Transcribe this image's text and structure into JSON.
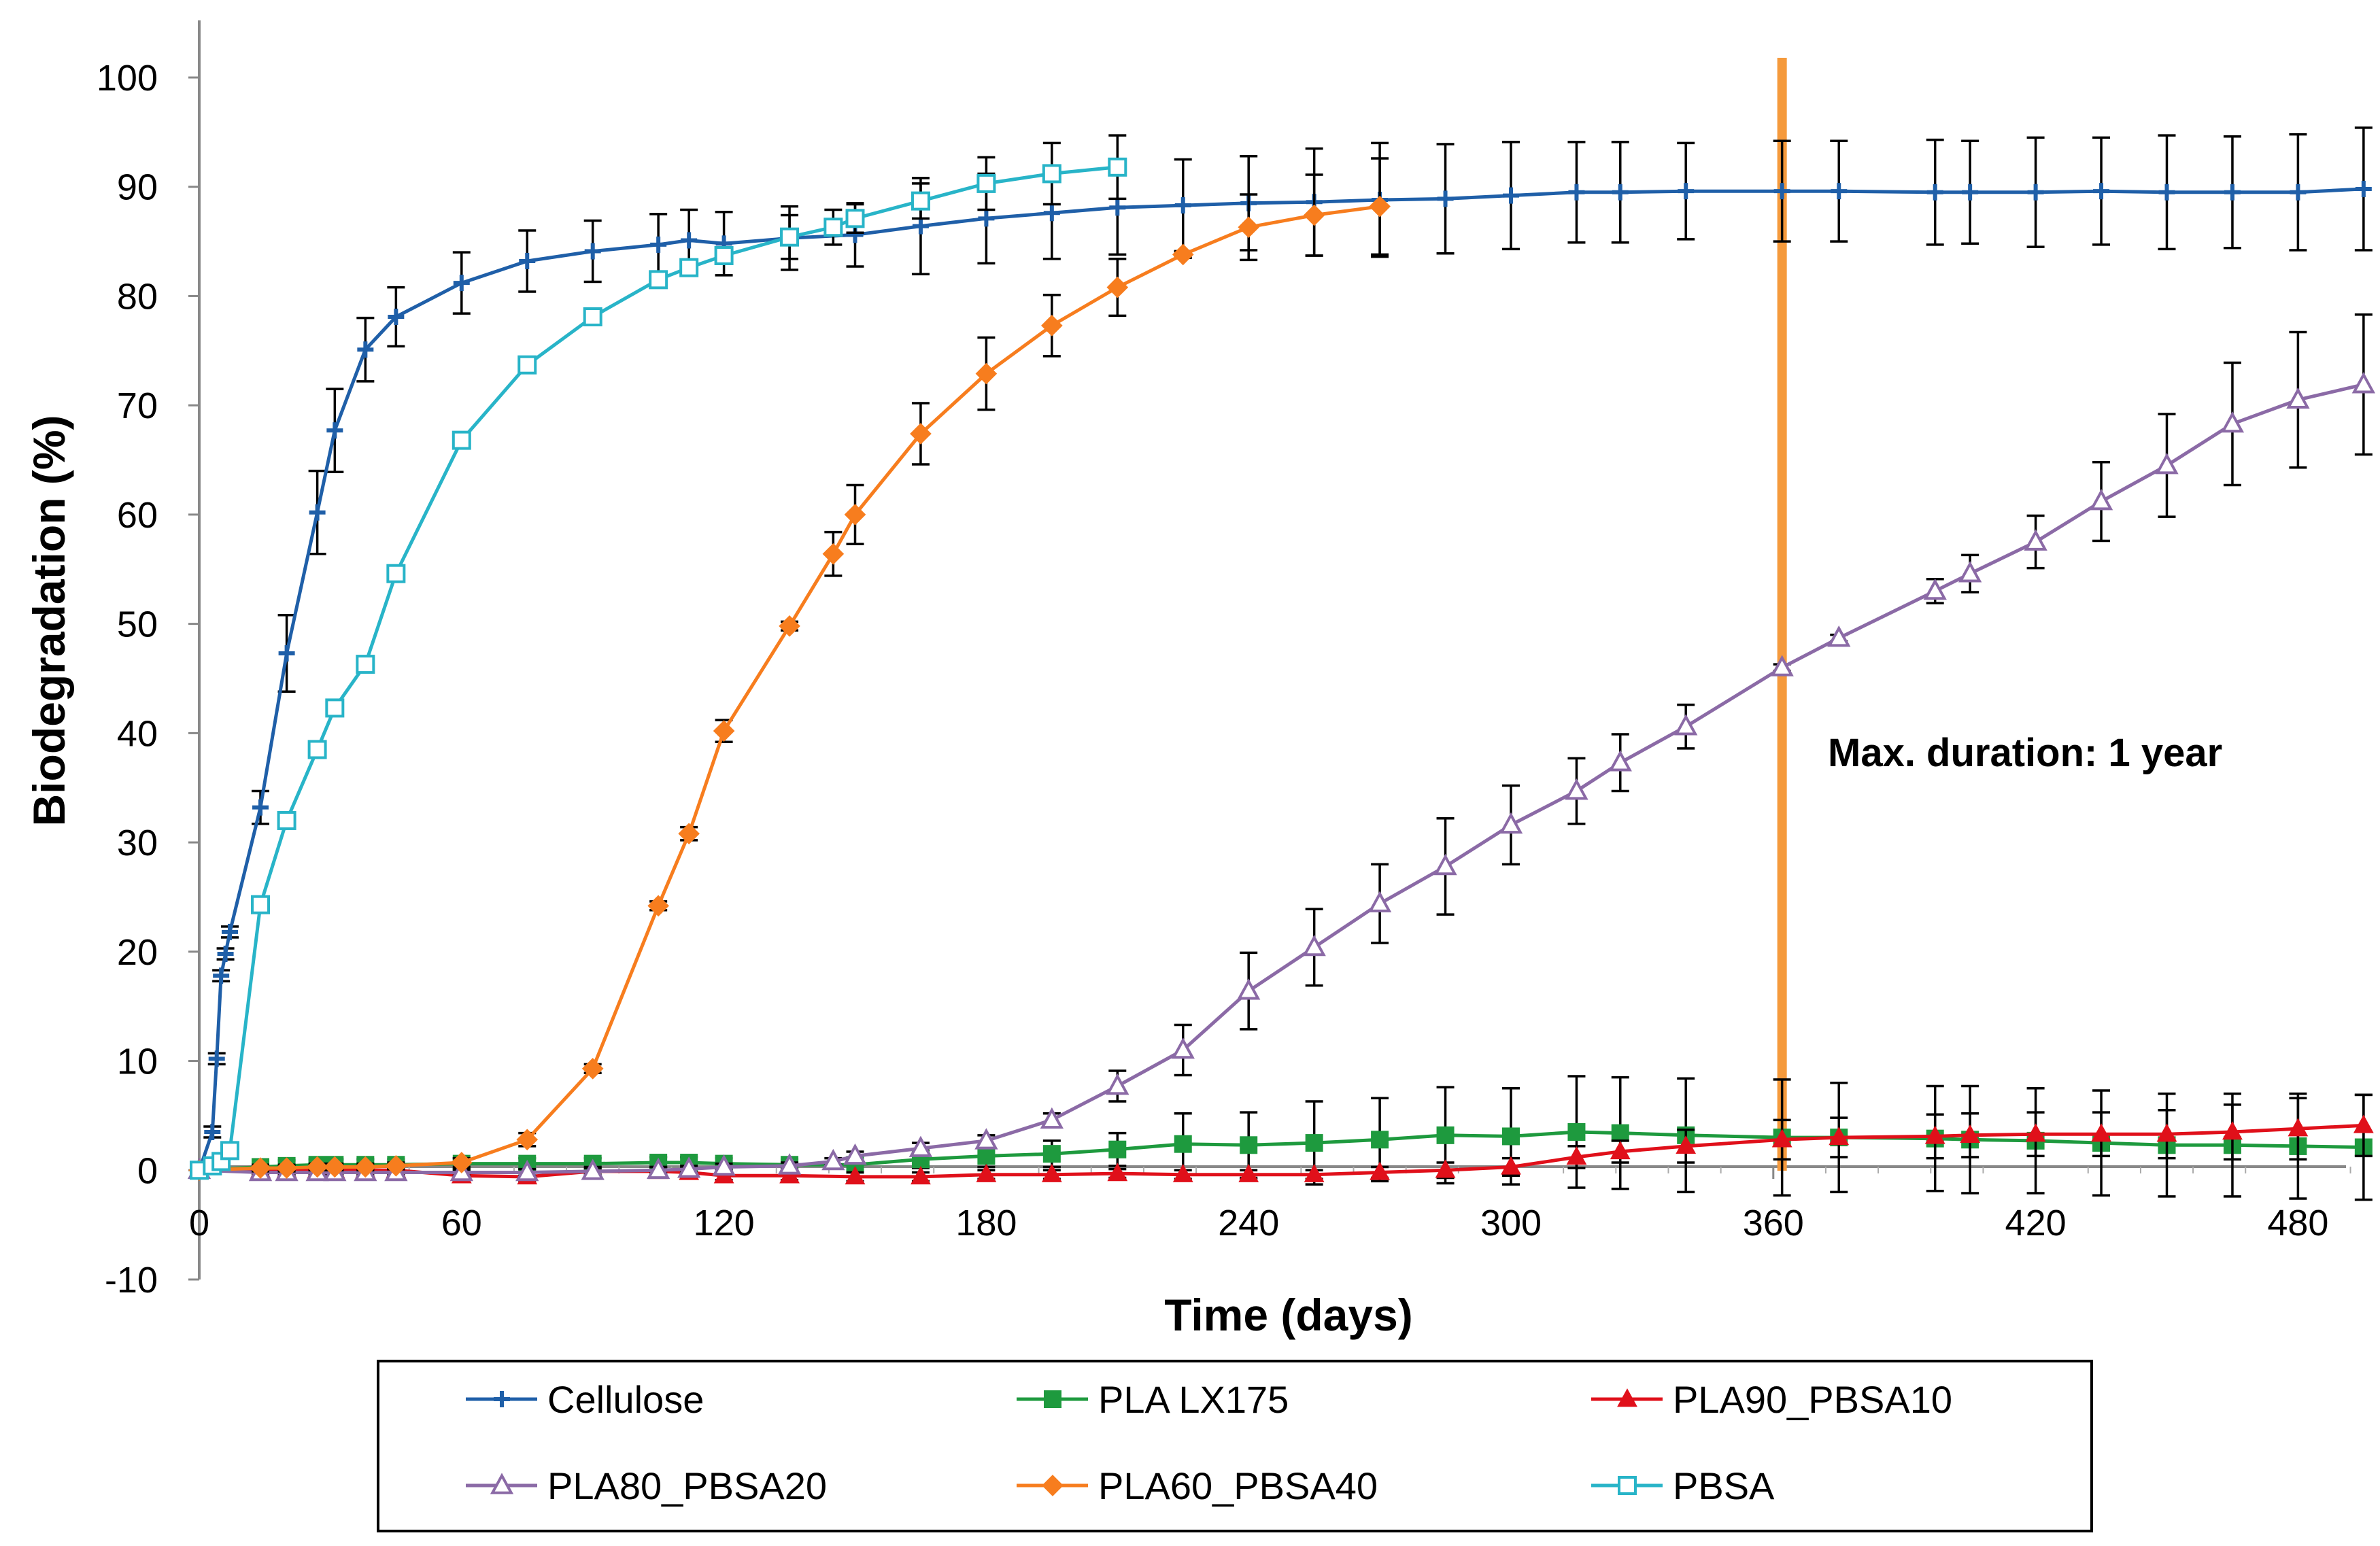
{
  "chart_data": {
    "type": "line",
    "title": "",
    "xlabel": "Time (days)",
    "ylabel": "Biodegradation  (%)",
    "xlim": [
      0,
      500
    ],
    "ylim": [
      -10,
      100
    ],
    "x_ticks": [
      "0",
      "60",
      "120",
      "180",
      "240",
      "300",
      "360",
      "420",
      "480"
    ],
    "y_ticks": [
      "100",
      "90",
      "80",
      "70",
      "60",
      "50",
      "40",
      "30",
      "20",
      "10",
      "0",
      "-10"
    ],
    "grid": false,
    "legend_position": "bottom",
    "annotation": {
      "text": "Max. duration: 1 year",
      "x": 362,
      "line_color": "#f59a3c"
    },
    "series": [
      {
        "name": "Cellulose",
        "color": "#1f5fa8",
        "marker": "plus",
        "points": [
          [
            0,
            0
          ],
          [
            3,
            3.5
          ],
          [
            4,
            10.2
          ],
          [
            5,
            17.8
          ],
          [
            6,
            19.8
          ],
          [
            7,
            21.8
          ],
          [
            14,
            33.2
          ],
          [
            20,
            47.3
          ],
          [
            27,
            60.2
          ],
          [
            31,
            67.7
          ],
          [
            38,
            75.1
          ],
          [
            45,
            78.1
          ],
          [
            60,
            81.2
          ],
          [
            75,
            83.2
          ],
          [
            90,
            84.1
          ],
          [
            105,
            84.7
          ],
          [
            112,
            85.1
          ],
          [
            120,
            84.8
          ],
          [
            135,
            85.3
          ],
          [
            150,
            85.6
          ],
          [
            165,
            86.4
          ],
          [
            180,
            87.1
          ],
          [
            195,
            87.6
          ],
          [
            210,
            88.1
          ],
          [
            225,
            88.3
          ],
          [
            240,
            88.5
          ],
          [
            255,
            88.6
          ],
          [
            270,
            88.8
          ],
          [
            285,
            88.9
          ],
          [
            300,
            89.2
          ],
          [
            315,
            89.5
          ],
          [
            325,
            89.5
          ],
          [
            340,
            89.6
          ],
          [
            362,
            89.6
          ],
          [
            375,
            89.6
          ],
          [
            397,
            89.5
          ],
          [
            405,
            89.5
          ],
          [
            420,
            89.5
          ],
          [
            435,
            89.6
          ],
          [
            450,
            89.5
          ],
          [
            465,
            89.5
          ],
          [
            480,
            89.5
          ],
          [
            495,
            89.8
          ]
        ],
        "errors": [
          0,
          0.5,
          0.5,
          0.5,
          0.5,
          0.5,
          1.5,
          3.5,
          3.8,
          3.8,
          2.9,
          2.7,
          2.8,
          2.8,
          2.8,
          2.8,
          2.8,
          2.9,
          2.9,
          2.9,
          4.4,
          4.1,
          4.2,
          4.3,
          4.2,
          4.3,
          4.9,
          5.2,
          5.0,
          4.9,
          4.6,
          4.6,
          4.4,
          4.6,
          4.6,
          4.8,
          4.7,
          5.0,
          4.9,
          5.2,
          5.1,
          5.3,
          5.6
        ]
      },
      {
        "name": "PLA LX175",
        "color": "#1e9a3e",
        "marker": "square",
        "points": [
          [
            0,
            0
          ],
          [
            14,
            0.3
          ],
          [
            20,
            0.4
          ],
          [
            27,
            0.5
          ],
          [
            31,
            0.5
          ],
          [
            38,
            0.5
          ],
          [
            45,
            0.5
          ],
          [
            60,
            0.6
          ],
          [
            75,
            0.6
          ],
          [
            90,
            0.6
          ],
          [
            105,
            0.7
          ],
          [
            112,
            0.7
          ],
          [
            120,
            0.6
          ],
          [
            135,
            0.5
          ],
          [
            150,
            0.5
          ],
          [
            165,
            1.0
          ],
          [
            180,
            1.3
          ],
          [
            195,
            1.5
          ],
          [
            210,
            1.9
          ],
          [
            225,
            2.4
          ],
          [
            240,
            2.3
          ],
          [
            255,
            2.5
          ],
          [
            270,
            2.8
          ],
          [
            285,
            3.2
          ],
          [
            300,
            3.1
          ],
          [
            315,
            3.5
          ],
          [
            325,
            3.4
          ],
          [
            340,
            3.2
          ],
          [
            362,
            3.0
          ],
          [
            375,
            3.0
          ],
          [
            397,
            2.9
          ],
          [
            405,
            2.8
          ],
          [
            420,
            2.7
          ],
          [
            435,
            2.5
          ],
          [
            450,
            2.3
          ],
          [
            465,
            2.3
          ],
          [
            480,
            2.2
          ],
          [
            495,
            2.1
          ]
        ],
        "errors": [
          0,
          0.5,
          0.5,
          0.5,
          0.5,
          0.5,
          0.5,
          0.5,
          0.5,
          0.5,
          0.5,
          0.5,
          0.5,
          0.5,
          0.5,
          0.8,
          1.0,
          1.2,
          1.5,
          2.8,
          3.0,
          3.8,
          3.8,
          4.4,
          4.4,
          5.1,
          5.1,
          5.2,
          5.3,
          5.0,
          4.8,
          4.9,
          4.8,
          4.8,
          4.7,
          4.7,
          4.8,
          4.8
        ]
      },
      {
        "name": "PLA90_PBSA10",
        "color": "#e0101a",
        "marker": "triangle-filled",
        "points": [
          [
            0,
            0
          ],
          [
            14,
            0
          ],
          [
            20,
            0
          ],
          [
            27,
            0
          ],
          [
            31,
            0
          ],
          [
            38,
            0
          ],
          [
            45,
            0
          ],
          [
            60,
            -0.5
          ],
          [
            75,
            -0.6
          ],
          [
            90,
            -0.1
          ],
          [
            105,
            -0.1
          ],
          [
            112,
            -0.2
          ],
          [
            120,
            -0.5
          ],
          [
            135,
            -0.5
          ],
          [
            150,
            -0.6
          ],
          [
            165,
            -0.6
          ],
          [
            180,
            -0.4
          ],
          [
            195,
            -0.4
          ],
          [
            210,
            -0.3
          ],
          [
            225,
            -0.4
          ],
          [
            240,
            -0.4
          ],
          [
            255,
            -0.4
          ],
          [
            270,
            -0.2
          ],
          [
            285,
            0
          ],
          [
            300,
            0.3
          ],
          [
            315,
            1.2
          ],
          [
            325,
            1.7
          ],
          [
            340,
            2.2
          ],
          [
            362,
            2.8
          ],
          [
            375,
            3.0
          ],
          [
            397,
            3.1
          ],
          [
            405,
            3.2
          ],
          [
            420,
            3.3
          ],
          [
            435,
            3.3
          ],
          [
            450,
            3.3
          ],
          [
            465,
            3.5
          ],
          [
            480,
            3.8
          ],
          [
            495,
            4.1
          ]
        ],
        "errors": [
          0,
          0.3,
          0.3,
          0.3,
          0.3,
          0.3,
          0.3,
          0.4,
          0.4,
          0.4,
          0.4,
          0.4,
          0.4,
          0.4,
          0.4,
          0.4,
          0.4,
          0.4,
          0.4,
          0.4,
          0.4,
          0.4,
          0.5,
          0.7,
          0.8,
          1.0,
          1.0,
          1.5,
          1.8,
          1.8,
          2.0,
          2.0,
          2.0,
          2.0,
          2.2,
          2.5,
          2.8,
          2.8
        ]
      },
      {
        "name": "PLA80_PBSA20",
        "color": "#8b6aa6",
        "marker": "triangle-open",
        "points": [
          [
            0,
            0
          ],
          [
            14,
            -0.2
          ],
          [
            20,
            -0.2
          ],
          [
            27,
            -0.2
          ],
          [
            31,
            -0.2
          ],
          [
            38,
            -0.2
          ],
          [
            45,
            -0.2
          ],
          [
            60,
            -0.2
          ],
          [
            75,
            -0.2
          ],
          [
            90,
            -0.1
          ],
          [
            105,
            0
          ],
          [
            112,
            0.1
          ],
          [
            120,
            0.3
          ],
          [
            135,
            0.4
          ],
          [
            145,
            0.8
          ],
          [
            150,
            1.3
          ],
          [
            165,
            2.0
          ],
          [
            180,
            2.7
          ],
          [
            195,
            4.6
          ],
          [
            210,
            7.7
          ],
          [
            225,
            11.0
          ],
          [
            240,
            16.4
          ],
          [
            255,
            20.4
          ],
          [
            270,
            24.4
          ],
          [
            285,
            27.8
          ],
          [
            300,
            31.6
          ],
          [
            315,
            34.7
          ],
          [
            325,
            37.3
          ],
          [
            340,
            40.6
          ],
          [
            362,
            46.0
          ],
          [
            375,
            48.7
          ],
          [
            397,
            53.0
          ],
          [
            405,
            54.6
          ],
          [
            420,
            57.5
          ],
          [
            435,
            61.2
          ],
          [
            450,
            64.5
          ],
          [
            465,
            68.3
          ],
          [
            480,
            70.5
          ],
          [
            495,
            71.9
          ]
        ],
        "errors": [
          0,
          0.3,
          0.3,
          0.3,
          0.3,
          0.3,
          0.3,
          0.3,
          0.3,
          0.3,
          0.3,
          0.3,
          0.3,
          0.3,
          0.3,
          0.4,
          0.5,
          0.5,
          0.6,
          1.4,
          2.3,
          3.5,
          3.5,
          3.6,
          4.4,
          3.6,
          3.0,
          2.6,
          2.0,
          0.3,
          0.3,
          1.1,
          1.7,
          2.4,
          3.6,
          4.7,
          5.6,
          6.2,
          6.4
        ]
      },
      {
        "name": "PLA60_PBSA40",
        "color": "#f77d1e",
        "marker": "diamond",
        "points": [
          [
            0,
            0
          ],
          [
            14,
            0.2
          ],
          [
            20,
            0.2
          ],
          [
            27,
            0.3
          ],
          [
            31,
            0.3
          ],
          [
            38,
            0.3
          ],
          [
            45,
            0.4
          ],
          [
            60,
            0.7
          ],
          [
            75,
            2.8
          ],
          [
            90,
            9.3
          ],
          [
            105,
            24.2
          ],
          [
            112,
            30.8
          ],
          [
            120,
            40.2
          ],
          [
            135,
            49.8
          ],
          [
            145,
            56.4
          ],
          [
            150,
            60.0
          ],
          [
            165,
            67.4
          ],
          [
            180,
            72.9
          ],
          [
            195,
            77.3
          ],
          [
            210,
            80.8
          ],
          [
            225,
            83.8
          ],
          [
            240,
            86.3
          ],
          [
            255,
            87.4
          ],
          [
            270,
            88.2
          ]
        ],
        "errors": [
          0,
          0.3,
          0.3,
          0.3,
          0.3,
          0.3,
          0.3,
          0.4,
          0.6,
          0.4,
          0.4,
          0.6,
          1.0,
          0.4,
          2.0,
          2.7,
          2.8,
          3.3,
          2.8,
          2.6,
          0.3,
          3.0,
          3.7,
          4.4
        ]
      },
      {
        "name": "PBSA",
        "color": "#28b4c8",
        "marker": "square-open",
        "points": [
          [
            0,
            0
          ],
          [
            3,
            0.4
          ],
          [
            5,
            0.8
          ],
          [
            7,
            1.8
          ],
          [
            14,
            24.3
          ],
          [
            20,
            32.0
          ],
          [
            27,
            38.5
          ],
          [
            31,
            42.3
          ],
          [
            38,
            46.3
          ],
          [
            45,
            54.6
          ],
          [
            60,
            66.8
          ],
          [
            75,
            73.7
          ],
          [
            90,
            78.1
          ],
          [
            105,
            81.5
          ],
          [
            112,
            82.6
          ],
          [
            120,
            83.7
          ],
          [
            135,
            85.4
          ],
          [
            145,
            86.3
          ],
          [
            150,
            87.1
          ],
          [
            165,
            88.7
          ],
          [
            180,
            90.3
          ],
          [
            195,
            91.2
          ],
          [
            210,
            91.8
          ]
        ],
        "errors": [
          0,
          0.2,
          0.2,
          0.2,
          0.3,
          0.3,
          0.3,
          0.3,
          0.3,
          0.3,
          0.3,
          0.3,
          0.3,
          0.3,
          0.3,
          0.3,
          2.0,
          1.6,
          1.3,
          1.6,
          2.4,
          2.8,
          2.9
        ]
      }
    ]
  }
}
